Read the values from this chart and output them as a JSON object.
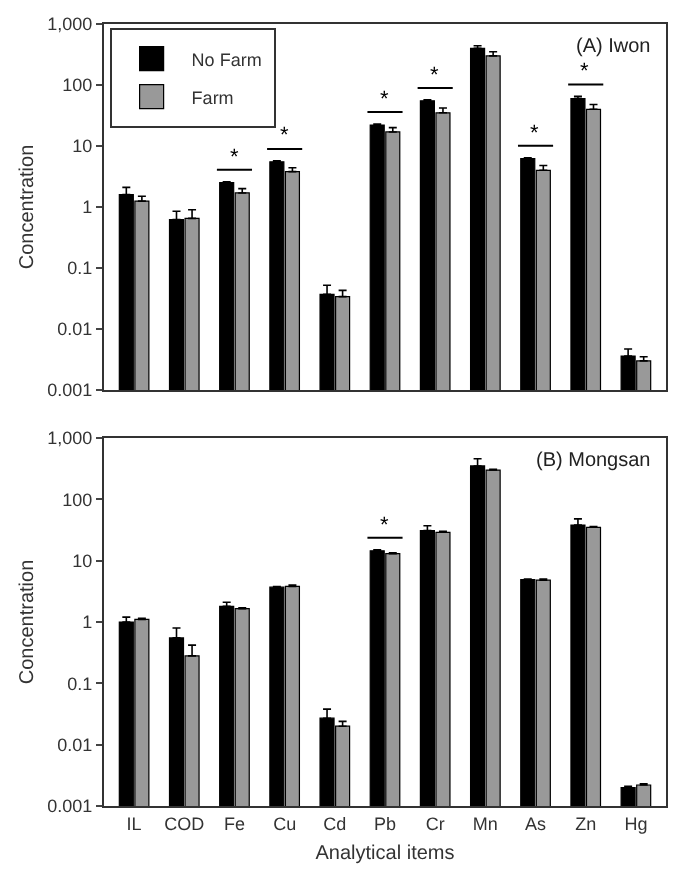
{
  "chart_data": [
    {
      "type": "bar",
      "title": "(A) Iwon",
      "ylabel": "Concentration",
      "categories": [
        "IL",
        "COD",
        "Fe",
        "Cu",
        "Cd",
        "Pb",
        "Cr",
        "Mn",
        "As",
        "Zn",
        "Hg"
      ],
      "series": [
        {
          "name": "No Farm",
          "color": "#000000",
          "values": [
            1.6,
            0.62,
            2.5,
            5.5,
            0.037,
            22,
            55,
            400,
            6.2,
            60,
            0.0036
          ],
          "errors": [
            [
              1.6,
              2.1
            ],
            [
              0.62,
              0.85
            ],
            [
              2.5,
              2.6
            ],
            [
              5.5,
              5.7
            ],
            [
              0.037,
              0.052
            ],
            [
              22,
              23
            ],
            [
              55,
              57
            ],
            [
              400,
              440
            ],
            [
              6.2,
              6.4
            ],
            [
              60,
              65
            ],
            [
              0.0036,
              0.0047
            ]
          ]
        },
        {
          "name": "Farm",
          "color": "#999999",
          "values": [
            1.25,
            0.65,
            1.7,
            3.8,
            0.034,
            17,
            35,
            300,
            4.0,
            40,
            0.003
          ],
          "errors": [
            [
              1.25,
              1.5
            ],
            [
              0.65,
              0.9
            ],
            [
              1.7,
              2.0
            ],
            [
              3.8,
              4.4
            ],
            [
              0.034,
              0.043
            ],
            [
              17,
              20
            ],
            [
              35,
              42
            ],
            [
              300,
              350
            ],
            [
              4.0,
              4.8
            ],
            [
              40,
              48
            ],
            [
              0.003,
              0.0035
            ]
          ]
        }
      ],
      "annotations": [
        {
          "text": "*",
          "x": "Fe",
          "y": 2.6
        },
        {
          "text": "*",
          "x": "Cu",
          "y": 5.7
        },
        {
          "text": "*",
          "x": "Pb",
          "y": 23
        },
        {
          "text": "*",
          "x": "Cr",
          "y": 57
        },
        {
          "text": "*",
          "x": "As",
          "y": 6.4
        },
        {
          "text": "*",
          "x": "Zn",
          "y": 65
        }
      ],
      "log": true,
      "ylim": [
        0.001,
        1000
      ],
      "yticks": [
        0.001,
        0.01,
        0.1,
        1,
        10,
        100,
        {
          "value": 1000,
          "label": "1,000"
        }
      ],
      "tick_labels": "y",
      "legend": "top left",
      "grid": false
    },
    {
      "type": "bar",
      "title": "(B) Mongsan",
      "ylabel": "Concentration",
      "xlabel": "Analytical items",
      "categories": [
        "IL",
        "COD",
        "Fe",
        "Cu",
        "Cd",
        "Pb",
        "Cr",
        "Mn",
        "As",
        "Zn",
        "Hg"
      ],
      "series": [
        {
          "name": "No Farm",
          "color": "#000000",
          "values": [
            1.0,
            0.55,
            1.8,
            3.7,
            0.027,
            14.5,
            31,
            350,
            4.9,
            38,
            0.002
          ],
          "errors": [
            [
              1.0,
              1.2
            ],
            [
              0.55,
              0.8
            ],
            [
              1.8,
              2.1
            ],
            [
              3.7,
              3.8
            ],
            [
              0.027,
              0.038
            ],
            [
              14.5,
              15
            ],
            [
              31,
              37
            ],
            [
              350,
              460
            ],
            [
              4.9,
              5.0
            ],
            [
              38,
              48
            ],
            [
              0.002,
              0.0021
            ]
          ]
        },
        {
          "name": "Farm",
          "color": "#999999",
          "values": [
            1.1,
            0.28,
            1.65,
            3.8,
            0.02,
            13,
            29,
            300,
            4.8,
            35,
            0.0022
          ],
          "errors": [
            [
              1.1,
              1.15
            ],
            [
              0.28,
              0.42
            ],
            [
              1.65,
              1.7
            ],
            [
              3.8,
              4.0
            ],
            [
              0.02,
              0.024
            ],
            [
              13,
              13.5
            ],
            [
              29,
              30
            ],
            [
              300,
              310
            ],
            [
              4.8,
              5.0
            ],
            [
              35,
              36
            ],
            [
              0.0022,
              0.0023
            ]
          ]
        }
      ],
      "annotations": [
        {
          "text": "*",
          "x": "Pb",
          "y": 15
        }
      ],
      "log": true,
      "ylim": [
        0.001,
        1000
      ],
      "yticks": [
        0.001,
        0.01,
        0.1,
        1,
        10,
        100,
        {
          "value": 1000,
          "label": "1,000"
        }
      ],
      "legend": false,
      "grid": false
    }
  ]
}
